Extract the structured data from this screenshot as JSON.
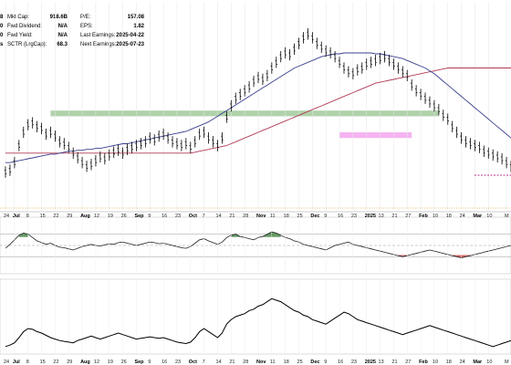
{
  "info": {
    "left_values": [
      "8",
      "0",
      "0",
      "s"
    ],
    "fields": [
      {
        "label": "Mkt Cap:",
        "value": "918.6B"
      },
      {
        "label": "Fwd Dividend:",
        "value": "N/A"
      },
      {
        "label": "Fwd Yield:",
        "value": "N/A"
      },
      {
        "label": "SCTR (LrgCap):",
        "value": "68.3"
      }
    ],
    "fields2": [
      {
        "label": "P/E:",
        "value": "157.08"
      },
      {
        "label": "EPS:",
        "value": "1.82"
      },
      {
        "label": "Last Earnings:",
        "value": "2025-04-22"
      },
      {
        "label": "Next Earnings:",
        "value": "2025-07-23"
      }
    ]
  },
  "colors": {
    "price": "#000000",
    "ma_fast": "#3a3f8f",
    "ma_slow": "#b03a55",
    "resistance_zone": "#8fbf86",
    "pink_zone": "#f2a0ee",
    "support_dash": "#b0308a",
    "dotted_gold": "#d8b040",
    "osc_fill_green": "#3f7f3f",
    "osc_fill_red": "#c04040"
  },
  "chart_data": [
    {
      "type": "line",
      "panel": "price",
      "x": [
        0,
        1,
        2,
        3,
        4,
        5,
        6,
        7,
        8,
        9,
        10,
        11,
        12,
        13,
        14,
        15,
        16,
        17,
        18,
        19,
        20,
        21,
        22,
        23,
        24,
        25,
        26,
        27,
        28,
        29,
        30,
        31,
        32,
        33,
        34,
        35,
        36,
        37,
        38,
        39,
        40,
        41,
        42,
        43,
        44,
        45,
        46,
        47,
        48,
        49,
        50,
        51,
        52,
        53,
        54,
        55,
        56,
        57,
        58,
        59,
        60,
        61,
        62,
        63,
        64,
        65,
        66,
        67,
        68,
        69,
        70,
        71,
        72,
        73,
        74,
        75,
        76,
        77,
        78,
        79,
        80,
        81,
        82,
        83,
        84,
        85,
        86,
        87,
        88,
        89,
        90,
        91,
        92,
        93,
        94,
        95,
        96,
        97,
        98,
        99,
        100,
        101,
        102,
        103,
        104,
        105,
        106,
        107,
        108,
        109,
        110,
        111,
        112
      ],
      "series": [
        {
          "values": [
            140,
            142,
            150,
            168,
            182,
            190,
            192,
            188,
            186,
            180,
            182,
            178,
            172,
            170,
            166,
            160,
            155,
            150,
            146,
            148,
            152,
            156,
            154,
            158,
            161,
            163,
            160,
            164,
            166,
            168,
            170,
            172,
            176,
            174,
            178,
            180,
            176,
            172,
            170,
            168,
            170,
            166,
            172,
            180,
            182,
            176,
            172,
            168,
            176,
            198,
            210,
            218,
            222,
            226,
            230,
            236,
            240,
            238,
            242,
            250,
            256,
            262,
            266,
            264,
            270,
            276,
            282,
            286,
            282,
            276,
            272,
            268,
            266,
            262,
            256,
            250,
            246,
            244,
            248,
            250,
            254,
            256,
            258,
            260,
            262,
            258,
            254,
            250,
            246,
            242,
            232,
            226,
            222,
            218,
            214,
            210,
            206,
            200,
            196,
            188,
            182,
            176,
            172,
            170,
            168,
            166,
            162,
            160,
            158,
            156,
            154,
            150,
            146
          ]
        }
      ],
      "extra_series": [
        {
          "values": [
            150,
            150,
            151,
            152,
            153,
            154,
            155,
            156,
            157,
            158,
            159,
            159,
            160,
            161,
            162,
            162,
            163,
            163,
            164,
            164,
            165,
            165,
            166,
            167,
            168,
            169,
            170,
            170,
            171,
            172,
            173,
            174,
            175,
            176,
            177,
            178,
            179,
            180,
            181,
            182,
            183,
            185,
            187,
            189,
            191,
            193,
            196,
            199,
            202,
            205,
            208,
            211,
            214,
            217,
            220,
            223,
            226,
            229,
            232,
            235,
            238,
            241,
            244,
            247,
            250,
            252,
            254,
            256,
            258,
            260,
            262,
            263,
            264,
            265,
            265,
            266,
            266,
            266,
            266,
            266,
            266,
            266,
            265,
            265,
            264,
            263,
            262,
            261,
            260,
            258,
            256,
            254,
            252,
            250,
            247,
            244,
            240,
            236,
            232,
            228,
            224,
            220,
            216,
            212,
            208,
            204,
            200,
            196,
            192,
            188,
            184,
            180,
            176
          ]
        },
        {
          "values": [
            160,
            160,
            160,
            160,
            160,
            160,
            160,
            160,
            160,
            160,
            160,
            160,
            160,
            160,
            160,
            160,
            160,
            160,
            160,
            160,
            160,
            160,
            160,
            160,
            160,
            160,
            160,
            160,
            160,
            160,
            160,
            160,
            160,
            160,
            160,
            160,
            160,
            160,
            160,
            160,
            160,
            160,
            161,
            162,
            163,
            164,
            165,
            166,
            167,
            168,
            170,
            172,
            174,
            176,
            178,
            180,
            182,
            184,
            186,
            188,
            190,
            192,
            194,
            196,
            198,
            200,
            202,
            204,
            206,
            208,
            210,
            212,
            214,
            216,
            218,
            220,
            222,
            224,
            226,
            228,
            230,
            232,
            234,
            235,
            236,
            237,
            238,
            239,
            240,
            241,
            242,
            243,
            244,
            245,
            246,
            247,
            248,
            249,
            250,
            250,
            250,
            250,
            250,
            250,
            250,
            250,
            250,
            250,
            250,
            250,
            250,
            250,
            250
          ]
        }
      ],
      "ylim": [
        100,
        320
      ],
      "zones": [
        {
          "x_from": 10,
          "x_to": 96,
          "y_from": 199,
          "y_to": 205
        },
        {
          "x_from": 74,
          "x_to": 90,
          "y_from": 176,
          "y_to": 182
        }
      ]
    },
    {
      "type": "line",
      "panel": "oscillator",
      "x": [
        0,
        1,
        2,
        3,
        4,
        5,
        6,
        7,
        8,
        9,
        10,
        11,
        12,
        13,
        14,
        15,
        16,
        17,
        18,
        19,
        20,
        21,
        22,
        23,
        24,
        25,
        26,
        27,
        28,
        29,
        30,
        31,
        32,
        33,
        34,
        35,
        36,
        37,
        38,
        39,
        40,
        41,
        42,
        43,
        44,
        45,
        46,
        47,
        48,
        49,
        50,
        51,
        52,
        53,
        54,
        55,
        56,
        57,
        58,
        59,
        60,
        61,
        62,
        63,
        64,
        65,
        66,
        67,
        68,
        69,
        70,
        71,
        72,
        73,
        74,
        75,
        76,
        77,
        78,
        79,
        80,
        81,
        82,
        83,
        84,
        85,
        86,
        87,
        88,
        89,
        90,
        91,
        92,
        93,
        94,
        95,
        96,
        97,
        98,
        99,
        100,
        101,
        102,
        103,
        104,
        105,
        106,
        107,
        108,
        109,
        110,
        111,
        112
      ],
      "series": [
        {
          "values": [
            45,
            52,
            60,
            68,
            72,
            70,
            64,
            58,
            55,
            52,
            54,
            50,
            47,
            46,
            44,
            42,
            45,
            48,
            50,
            52,
            50,
            49,
            51,
            53,
            52,
            55,
            56,
            54,
            52,
            50,
            52,
            54,
            56,
            55,
            53,
            54,
            52,
            50,
            48,
            46,
            45,
            48,
            54,
            60,
            62,
            58,
            55,
            52,
            56,
            64,
            68,
            70,
            66,
            64,
            62,
            60,
            64,
            66,
            70,
            74,
            72,
            68,
            64,
            62,
            58,
            56,
            52,
            50,
            48,
            46,
            44,
            42,
            46,
            50,
            52,
            54,
            56,
            52,
            50,
            48,
            46,
            44,
            42,
            40,
            38,
            36,
            34,
            32,
            30,
            32,
            34,
            36,
            38,
            40,
            42,
            40,
            38,
            36,
            34,
            32,
            30,
            28,
            30,
            32,
            34,
            36,
            38,
            40,
            42,
            44,
            46,
            48,
            50
          ]
        }
      ],
      "ylim": [
        0,
        100
      ]
    },
    {
      "type": "line",
      "panel": "bottom",
      "x": [
        0,
        1,
        2,
        3,
        4,
        5,
        6,
        7,
        8,
        9,
        10,
        11,
        12,
        13,
        14,
        15,
        16,
        17,
        18,
        19,
        20,
        21,
        22,
        23,
        24,
        25,
        26,
        27,
        28,
        29,
        30,
        31,
        32,
        33,
        34,
        35,
        36,
        37,
        38,
        39,
        40,
        41,
        42,
        43,
        44,
        45,
        46,
        47,
        48,
        49,
        50,
        51,
        52,
        53,
        54,
        55,
        56,
        57,
        58,
        59,
        60,
        61,
        62,
        63,
        64,
        65,
        66,
        67,
        68,
        69,
        70,
        71,
        72,
        73,
        74,
        75,
        76,
        77,
        78,
        79,
        80,
        81,
        82,
        83,
        84,
        85,
        86,
        87,
        88,
        89,
        90,
        91,
        92,
        93,
        94,
        95,
        96,
        97,
        98,
        99,
        100,
        101,
        102,
        103,
        104,
        105,
        106,
        107,
        108,
        109,
        110,
        111,
        112
      ],
      "series": [
        {
          "values": [
            10,
            12,
            15,
            22,
            30,
            34,
            33,
            30,
            28,
            25,
            22,
            20,
            18,
            17,
            16,
            15,
            18,
            20,
            22,
            24,
            22,
            20,
            22,
            24,
            26,
            28,
            26,
            24,
            22,
            20,
            21,
            22,
            23,
            22,
            21,
            22,
            20,
            18,
            16,
            15,
            14,
            16,
            22,
            30,
            34,
            30,
            26,
            22,
            28,
            40,
            46,
            50,
            52,
            54,
            58,
            60,
            64,
            66,
            70,
            74,
            72,
            70,
            66,
            62,
            58,
            56,
            52,
            50,
            46,
            44,
            42,
            40,
            44,
            48,
            52,
            56,
            54,
            50,
            46,
            44,
            42,
            40,
            38,
            36,
            34,
            32,
            30,
            28,
            26,
            28,
            30,
            32,
            34,
            36,
            38,
            36,
            34,
            32,
            30,
            28,
            26,
            24,
            22,
            20,
            18,
            16,
            14,
            12,
            10,
            12,
            14,
            16,
            18
          ]
        }
      ],
      "ylim": [
        0,
        100
      ]
    }
  ],
  "axis": {
    "ticks": [
      {
        "t": "24",
        "x": 0,
        "bold": false
      },
      {
        "t": "Jul",
        "x": 2,
        "bold": true
      },
      {
        "t": "8",
        "x": 5,
        "bold": false
      },
      {
        "t": "15",
        "x": 8,
        "bold": false
      },
      {
        "t": "22",
        "x": 11,
        "bold": false
      },
      {
        "t": "29",
        "x": 14,
        "bold": false
      },
      {
        "t": "Aug",
        "x": 17,
        "bold": true
      },
      {
        "t": "12",
        "x": 20,
        "bold": false
      },
      {
        "t": "19",
        "x": 23,
        "bold": false
      },
      {
        "t": "26",
        "x": 26,
        "bold": false
      },
      {
        "t": "Sep",
        "x": 29,
        "bold": true
      },
      {
        "t": "9",
        "x": 32,
        "bold": false
      },
      {
        "t": "16",
        "x": 35,
        "bold": false
      },
      {
        "t": "23",
        "x": 38,
        "bold": false
      },
      {
        "t": "Oct",
        "x": 41,
        "bold": true
      },
      {
        "t": "7",
        "x": 44,
        "bold": false
      },
      {
        "t": "14",
        "x": 47,
        "bold": false
      },
      {
        "t": "21",
        "x": 50,
        "bold": false
      },
      {
        "t": "28",
        "x": 53,
        "bold": false
      },
      {
        "t": "Nov",
        "x": 56,
        "bold": true
      },
      {
        "t": "11",
        "x": 59,
        "bold": false
      },
      {
        "t": "18",
        "x": 62,
        "bold": false
      },
      {
        "t": "25",
        "x": 65,
        "bold": false
      },
      {
        "t": "Dec",
        "x": 68,
        "bold": true
      },
      {
        "t": "9",
        "x": 71,
        "bold": false
      },
      {
        "t": "16",
        "x": 74,
        "bold": false
      },
      {
        "t": "23",
        "x": 77,
        "bold": false
      },
      {
        "t": "2025",
        "x": 80,
        "bold": true
      },
      {
        "t": "13",
        "x": 83,
        "bold": false
      },
      {
        "t": "21",
        "x": 86,
        "bold": false
      },
      {
        "t": "27",
        "x": 89,
        "bold": false
      },
      {
        "t": "Feb",
        "x": 92,
        "bold": true
      },
      {
        "t": "10",
        "x": 95,
        "bold": false
      },
      {
        "t": "18",
        "x": 98,
        "bold": false
      },
      {
        "t": "24",
        "x": 101,
        "bold": false
      },
      {
        "t": "Mar",
        "x": 104,
        "bold": true
      },
      {
        "t": "10",
        "x": 107,
        "bold": false
      },
      {
        "t": "M",
        "x": 111,
        "bold": false
      }
    ]
  }
}
